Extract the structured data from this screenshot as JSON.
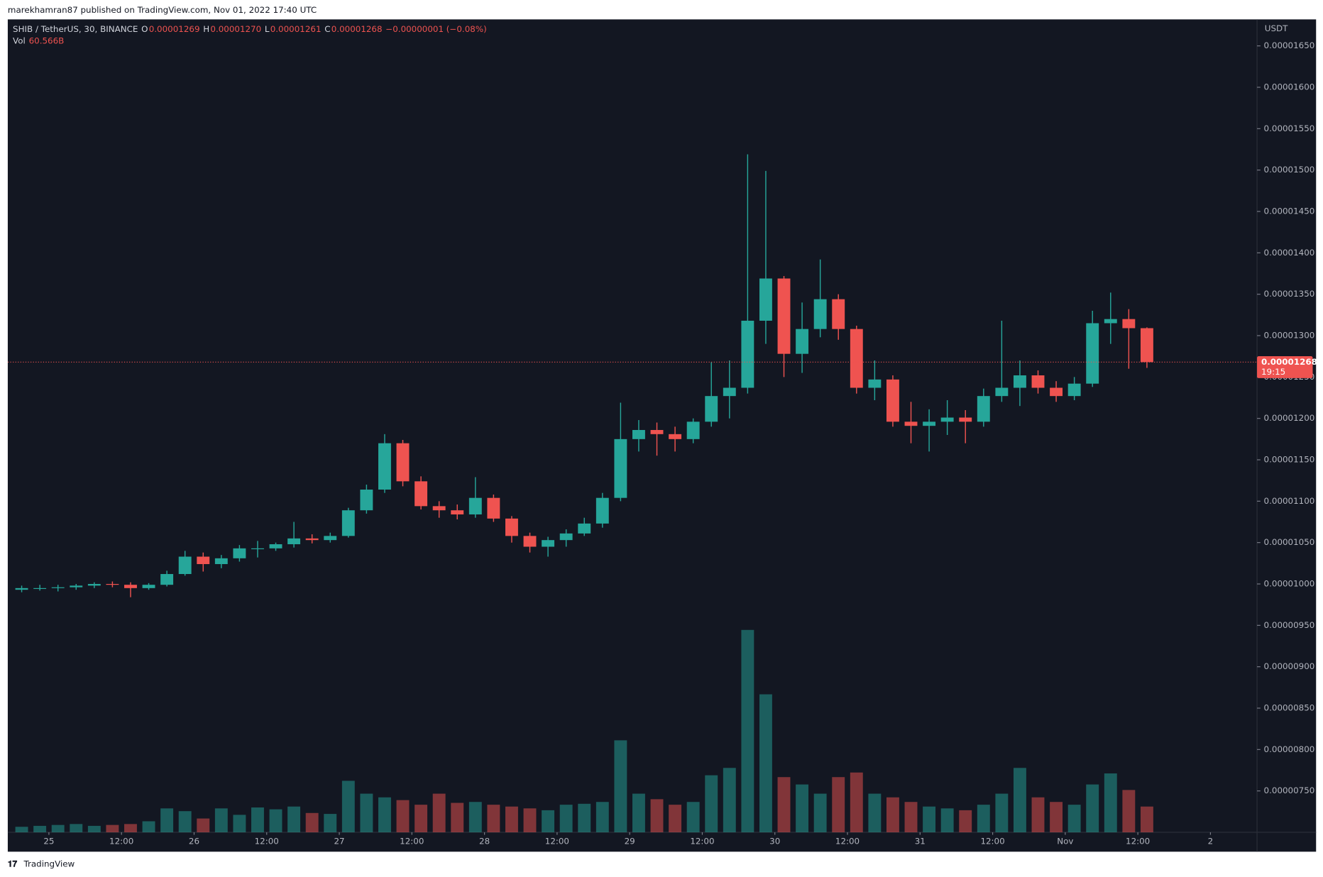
{
  "header": {
    "publisher": "marekhamran87 published on TradingView.com, Nov 01, 2022 17:40 UTC",
    "brand": "TradingView"
  },
  "chart_data": {
    "type": "candlestick",
    "symbol": "SHIB / TetherUS, 30, BINANCE",
    "legend": {
      "o_key": "O",
      "o": "0.00001269",
      "h_key": "H",
      "h": "0.00001270",
      "l_key": "L",
      "l": "0.00001261",
      "c_key": "C",
      "c": "0.00001268",
      "change": "−0.00000001 (−0.08%)",
      "vol_key": "Vol",
      "vol": "60.566B"
    },
    "currency": "USDT",
    "last_price": {
      "value": 1.268e-05,
      "label": "0.00001268"
    },
    "countdown": "19:15",
    "up_color": "#26a69a",
    "down_color": "#ef5350",
    "x": [
      -6,
      -3,
      0,
      3,
      6,
      9,
      12,
      15,
      18,
      21,
      24,
      27,
      30,
      33,
      36,
      39,
      42,
      45,
      48,
      51,
      54,
      57,
      60,
      63,
      66,
      69,
      72,
      75,
      78,
      81,
      84,
      87,
      90,
      93,
      96,
      99,
      102,
      105,
      108,
      111,
      114,
      117,
      120,
      123,
      126,
      129,
      132,
      135,
      138,
      141,
      144,
      147,
      150,
      153,
      156,
      159,
      162,
      165,
      168,
      171,
      174,
      177,
      180
    ],
    "open": [
      9.93e-06,
      9.95e-06,
      9.95e-06,
      9.96e-06,
      9.98e-06,
      1e-05,
      9.99e-06,
      9.95e-06,
      9.99e-06,
      1.012e-05,
      1.033e-05,
      1.024e-05,
      1.031e-05,
      1.043e-05,
      1.043e-05,
      1.048e-05,
      1.055e-05,
      1.053e-05,
      1.058e-05,
      1.089e-05,
      1.114e-05,
      1.17e-05,
      1.124e-05,
      1.094e-05,
      1.089e-05,
      1.084e-05,
      1.104e-05,
      1.079e-05,
      1.058e-05,
      1.045e-05,
      1.053e-05,
      1.061e-05,
      1.073e-05,
      1.104e-05,
      1.175e-05,
      1.186e-05,
      1.181e-05,
      1.175e-05,
      1.196e-05,
      1.227e-05,
      1.237e-05,
      1.318e-05,
      1.369e-05,
      1.278e-05,
      1.308e-05,
      1.344e-05,
      1.308e-05,
      1.237e-05,
      1.247e-05,
      1.196e-05,
      1.191e-05,
      1.196e-05,
      1.201e-05,
      1.196e-05,
      1.227e-05,
      1.237e-05,
      1.252e-05,
      1.237e-05,
      1.227e-05,
      1.242e-05,
      1.315e-05,
      1.32e-05,
      1.309e-05
    ],
    "high": [
      9.98e-06,
      9.99e-06,
      9.99e-06,
      1e-05,
      1.002e-05,
      1.003e-05,
      1.002e-05,
      1.001e-05,
      1.016e-05,
      1.04e-05,
      1.038e-05,
      1.035e-05,
      1.047e-05,
      1.052e-05,
      1.05e-05,
      1.075e-05,
      1.06e-05,
      1.062e-05,
      1.092e-05,
      1.12e-05,
      1.181e-05,
      1.174e-05,
      1.13e-05,
      1.1e-05,
      1.096e-05,
      1.129e-05,
      1.108e-05,
      1.082e-05,
      1.062e-05,
      1.057e-05,
      1.066e-05,
      1.08e-05,
      1.11e-05,
      1.219e-05,
      1.198e-05,
      1.195e-05,
      1.19e-05,
      1.2e-05,
      1.268e-05,
      1.27e-05,
      1.519e-05,
      1.499e-05,
      1.372e-05,
      1.34e-05,
      1.392e-05,
      1.35e-05,
      1.312e-05,
      1.27e-05,
      1.252e-05,
      1.22e-05,
      1.211e-05,
      1.222e-05,
      1.21e-05,
      1.236e-05,
      1.318e-05,
      1.27e-05,
      1.258e-05,
      1.245e-05,
      1.25e-05,
      1.33e-05,
      1.352e-05,
      1.332e-05,
      1.31e-05
    ],
    "low": [
      9.9e-06,
      9.92e-06,
      9.91e-06,
      9.93e-06,
      9.95e-06,
      9.96e-06,
      9.84e-06,
      9.93e-06,
      9.97e-06,
      1.01e-05,
      1.015e-05,
      1.019e-05,
      1.027e-05,
      1.032e-05,
      1.04e-05,
      1.044e-05,
      1.049e-05,
      1.05e-05,
      1.056e-05,
      1.085e-05,
      1.11e-05,
      1.118e-05,
      1.09e-05,
      1.08e-05,
      1.078e-05,
      1.08e-05,
      1.075e-05,
      1.05e-05,
      1.038e-05,
      1.033e-05,
      1.045e-05,
      1.058e-05,
      1.068e-05,
      1.1e-05,
      1.16e-05,
      1.155e-05,
      1.16e-05,
      1.17e-05,
      1.19e-05,
      1.2e-05,
      1.23e-05,
      1.29e-05,
      1.25e-05,
      1.255e-05,
      1.298e-05,
      1.295e-05,
      1.23e-05,
      1.222e-05,
      1.19e-05,
      1.17e-05,
      1.16e-05,
      1.18e-05,
      1.17e-05,
      1.19e-05,
      1.22e-05,
      1.215e-05,
      1.23e-05,
      1.22e-05,
      1.222e-05,
      1.238e-05,
      1.29e-05,
      1.26e-05,
      1.261e-05
    ],
    "close": [
      9.95e-06,
      9.95e-06,
      9.96e-06,
      9.98e-06,
      1e-05,
      9.99e-06,
      9.95e-06,
      9.99e-06,
      1.012e-05,
      1.033e-05,
      1.024e-05,
      1.031e-05,
      1.043e-05,
      1.043e-05,
      1.048e-05,
      1.055e-05,
      1.053e-05,
      1.058e-05,
      1.089e-05,
      1.114e-05,
      1.17e-05,
      1.124e-05,
      1.094e-05,
      1.089e-05,
      1.084e-05,
      1.104e-05,
      1.079e-05,
      1.058e-05,
      1.045e-05,
      1.053e-05,
      1.061e-05,
      1.073e-05,
      1.104e-05,
      1.175e-05,
      1.186e-05,
      1.181e-05,
      1.175e-05,
      1.196e-05,
      1.227e-05,
      1.237e-05,
      1.318e-05,
      1.369e-05,
      1.278e-05,
      1.308e-05,
      1.344e-05,
      1.308e-05,
      1.237e-05,
      1.247e-05,
      1.196e-05,
      1.191e-05,
      1.196e-05,
      1.201e-05,
      1.196e-05,
      1.227e-05,
      1.237e-05,
      1.252e-05,
      1.237e-05,
      1.227e-05,
      1.242e-05,
      1.315e-05,
      1.32e-05,
      1.309e-05,
      1.268e-05
    ],
    "volume": [
      60,
      70,
      80,
      90,
      70,
      80,
      90,
      120,
      260,
      230,
      150,
      260,
      190,
      270,
      250,
      280,
      210,
      200,
      560,
      420,
      380,
      350,
      300,
      420,
      320,
      330,
      300,
      280,
      260,
      240,
      300,
      310,
      330,
      1000,
      420,
      360,
      300,
      330,
      620,
      700,
      2200,
      1500,
      600,
      520,
      420,
      600,
      650,
      420,
      380,
      330,
      280,
      260,
      240,
      300,
      420,
      700,
      380,
      330,
      300,
      520,
      640,
      460,
      280
    ],
    "xlim": [
      -6.8,
      199.7
    ],
    "xticks": [
      {
        "value": 0,
        "label": "25"
      },
      {
        "value": 12,
        "label": "12:00"
      },
      {
        "value": 24,
        "label": "26"
      },
      {
        "value": 36,
        "label": "12:00"
      },
      {
        "value": 48,
        "label": "27"
      },
      {
        "value": 60,
        "label": "12:00"
      },
      {
        "value": 72,
        "label": "28"
      },
      {
        "value": 84,
        "label": "12:00"
      },
      {
        "value": 96,
        "label": "29"
      },
      {
        "value": 108,
        "label": "12:00"
      },
      {
        "value": 120,
        "label": "30"
      },
      {
        "value": 132,
        "label": "12:00"
      },
      {
        "value": 144,
        "label": "31"
      },
      {
        "value": 156,
        "label": "12:00"
      },
      {
        "value": 168,
        "label": "Nov"
      },
      {
        "value": 180,
        "label": "12:00"
      },
      {
        "value": 192,
        "label": "2"
      }
    ],
    "ylim": [
      7e-06,
      1.682e-05
    ],
    "yticks": [
      {
        "value": 7.5e-06,
        "label": "0.00000750"
      },
      {
        "value": 8e-06,
        "label": "0.00000800"
      },
      {
        "value": 8.5e-06,
        "label": "0.00000850"
      },
      {
        "value": 9e-06,
        "label": "0.00000900"
      },
      {
        "value": 9.5e-06,
        "label": "0.00000950"
      },
      {
        "value": 1e-05,
        "label": "0.00001000"
      },
      {
        "value": 1.05e-05,
        "label": "0.00001050"
      },
      {
        "value": 1.1e-05,
        "label": "0.00001100"
      },
      {
        "value": 1.15e-05,
        "label": "0.00001150"
      },
      {
        "value": 1.2e-05,
        "label": "0.00001200"
      },
      {
        "value": 1.25e-05,
        "label": "0.00001250"
      },
      {
        "value": 1.3e-05,
        "label": "0.00001300"
      },
      {
        "value": 1.35e-05,
        "label": "0.00001350"
      },
      {
        "value": 1.4e-05,
        "label": "0.00001400"
      },
      {
        "value": 1.45e-05,
        "label": "0.00001450"
      },
      {
        "value": 1.5e-05,
        "label": "0.00001500"
      },
      {
        "value": 1.55e-05,
        "label": "0.00001550"
      },
      {
        "value": 1.6e-05,
        "label": "0.00001600"
      },
      {
        "value": 1.65e-05,
        "label": "0.00001650"
      }
    ]
  }
}
